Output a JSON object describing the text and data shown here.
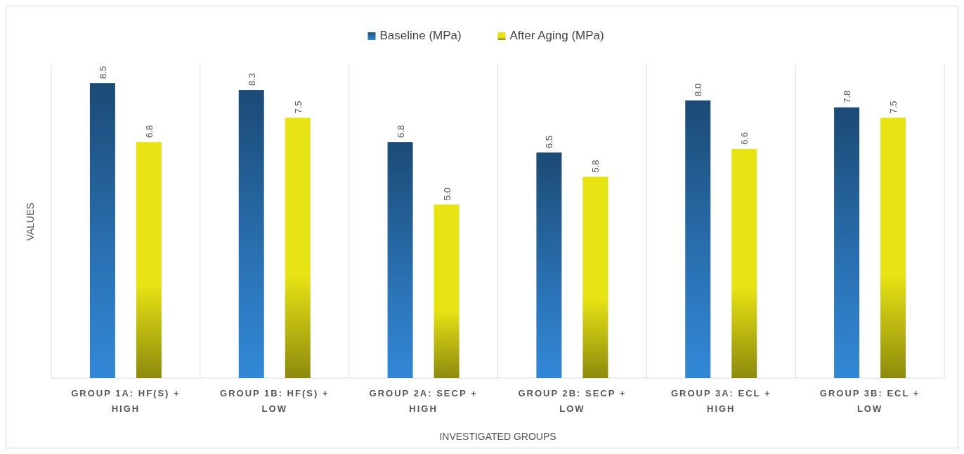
{
  "chart_data": {
    "type": "bar",
    "xlabel": "INVESTIGATED GROUPS",
    "ylabel": "VALUES",
    "categories": [
      "GROUP 1A: HF(S) + HIGH",
      "GROUP 1B: HF(S) + LOW",
      "GROUP 2A: SECP + HIGH",
      "GROUP 2B: SECP + LOW",
      "GROUP 3A: ECL + HIGH",
      "GROUP 3B: ECL + LOW"
    ],
    "series": [
      {
        "name": "Baseline (MPa)",
        "color": "#2a72b4",
        "values": [
          8.5,
          8.3,
          6.8,
          6.5,
          8.0,
          7.8
        ],
        "value_labels": [
          "8.5",
          "8.3",
          "6.8",
          "6.5",
          "8.0",
          "7.8"
        ]
      },
      {
        "name": "After Aging (MPa)",
        "color": "#e8e414",
        "values": [
          6.8,
          7.5,
          5.0,
          5.8,
          6.6,
          7.5
        ],
        "value_labels": [
          "6.8",
          "7.5",
          "5.0",
          "5.8",
          "6.6",
          "7.5"
        ]
      }
    ],
    "grid": "x",
    "legend": "top"
  }
}
